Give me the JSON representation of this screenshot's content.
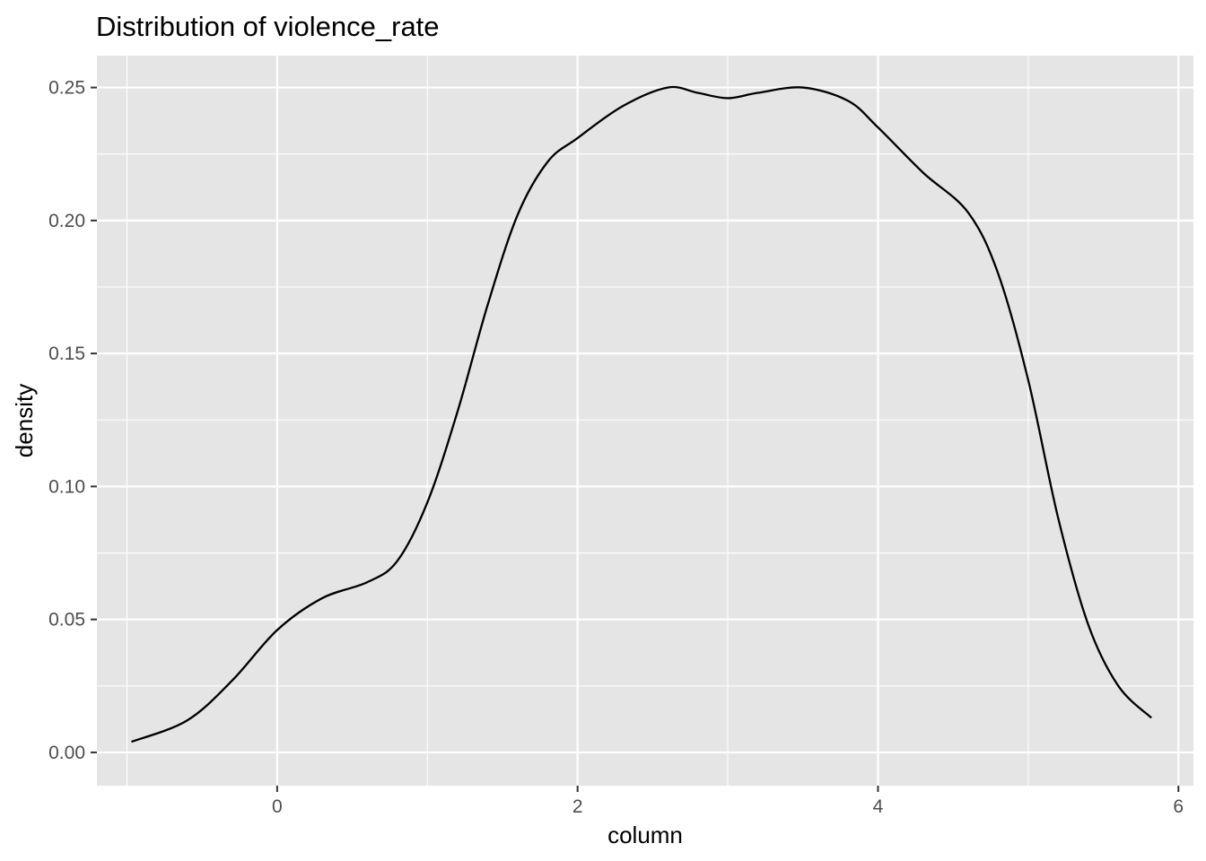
{
  "chart_data": {
    "type": "line",
    "title": "Distribution of violence_rate",
    "xlabel": "column",
    "ylabel": "density",
    "xlim": [
      -1.2,
      6.1
    ],
    "ylim": [
      -0.0125,
      0.262
    ],
    "x_ticks": [
      0,
      2,
      4,
      6
    ],
    "x_tick_labels": [
      "0",
      "2",
      "4",
      "6"
    ],
    "y_ticks": [
      0.0,
      0.05,
      0.1,
      0.15,
      0.2,
      0.25
    ],
    "y_tick_labels": [
      "0.00",
      "0.05",
      "0.10",
      "0.15",
      "0.20",
      "0.25"
    ],
    "grid": true,
    "panel_background": "#e5e5e5",
    "grid_color": "#ffffff",
    "line_color": "#000000",
    "series": [
      {
        "x": [
          -0.97,
          -0.6,
          -0.3,
          0.0,
          0.3,
          0.6,
          0.8,
          1.0,
          1.2,
          1.4,
          1.6,
          1.8,
          2.0,
          2.3,
          2.6,
          2.8,
          3.0,
          3.2,
          3.5,
          3.8,
          4.0,
          4.3,
          4.6,
          4.8,
          5.0,
          5.2,
          5.4,
          5.6,
          5.82
        ],
        "y": [
          0.004,
          0.012,
          0.027,
          0.046,
          0.058,
          0.064,
          0.072,
          0.094,
          0.128,
          0.168,
          0.202,
          0.222,
          0.231,
          0.243,
          0.25,
          0.248,
          0.246,
          0.248,
          0.25,
          0.245,
          0.235,
          0.218,
          0.203,
          0.18,
          0.14,
          0.088,
          0.048,
          0.025,
          0.013
        ]
      }
    ]
  }
}
